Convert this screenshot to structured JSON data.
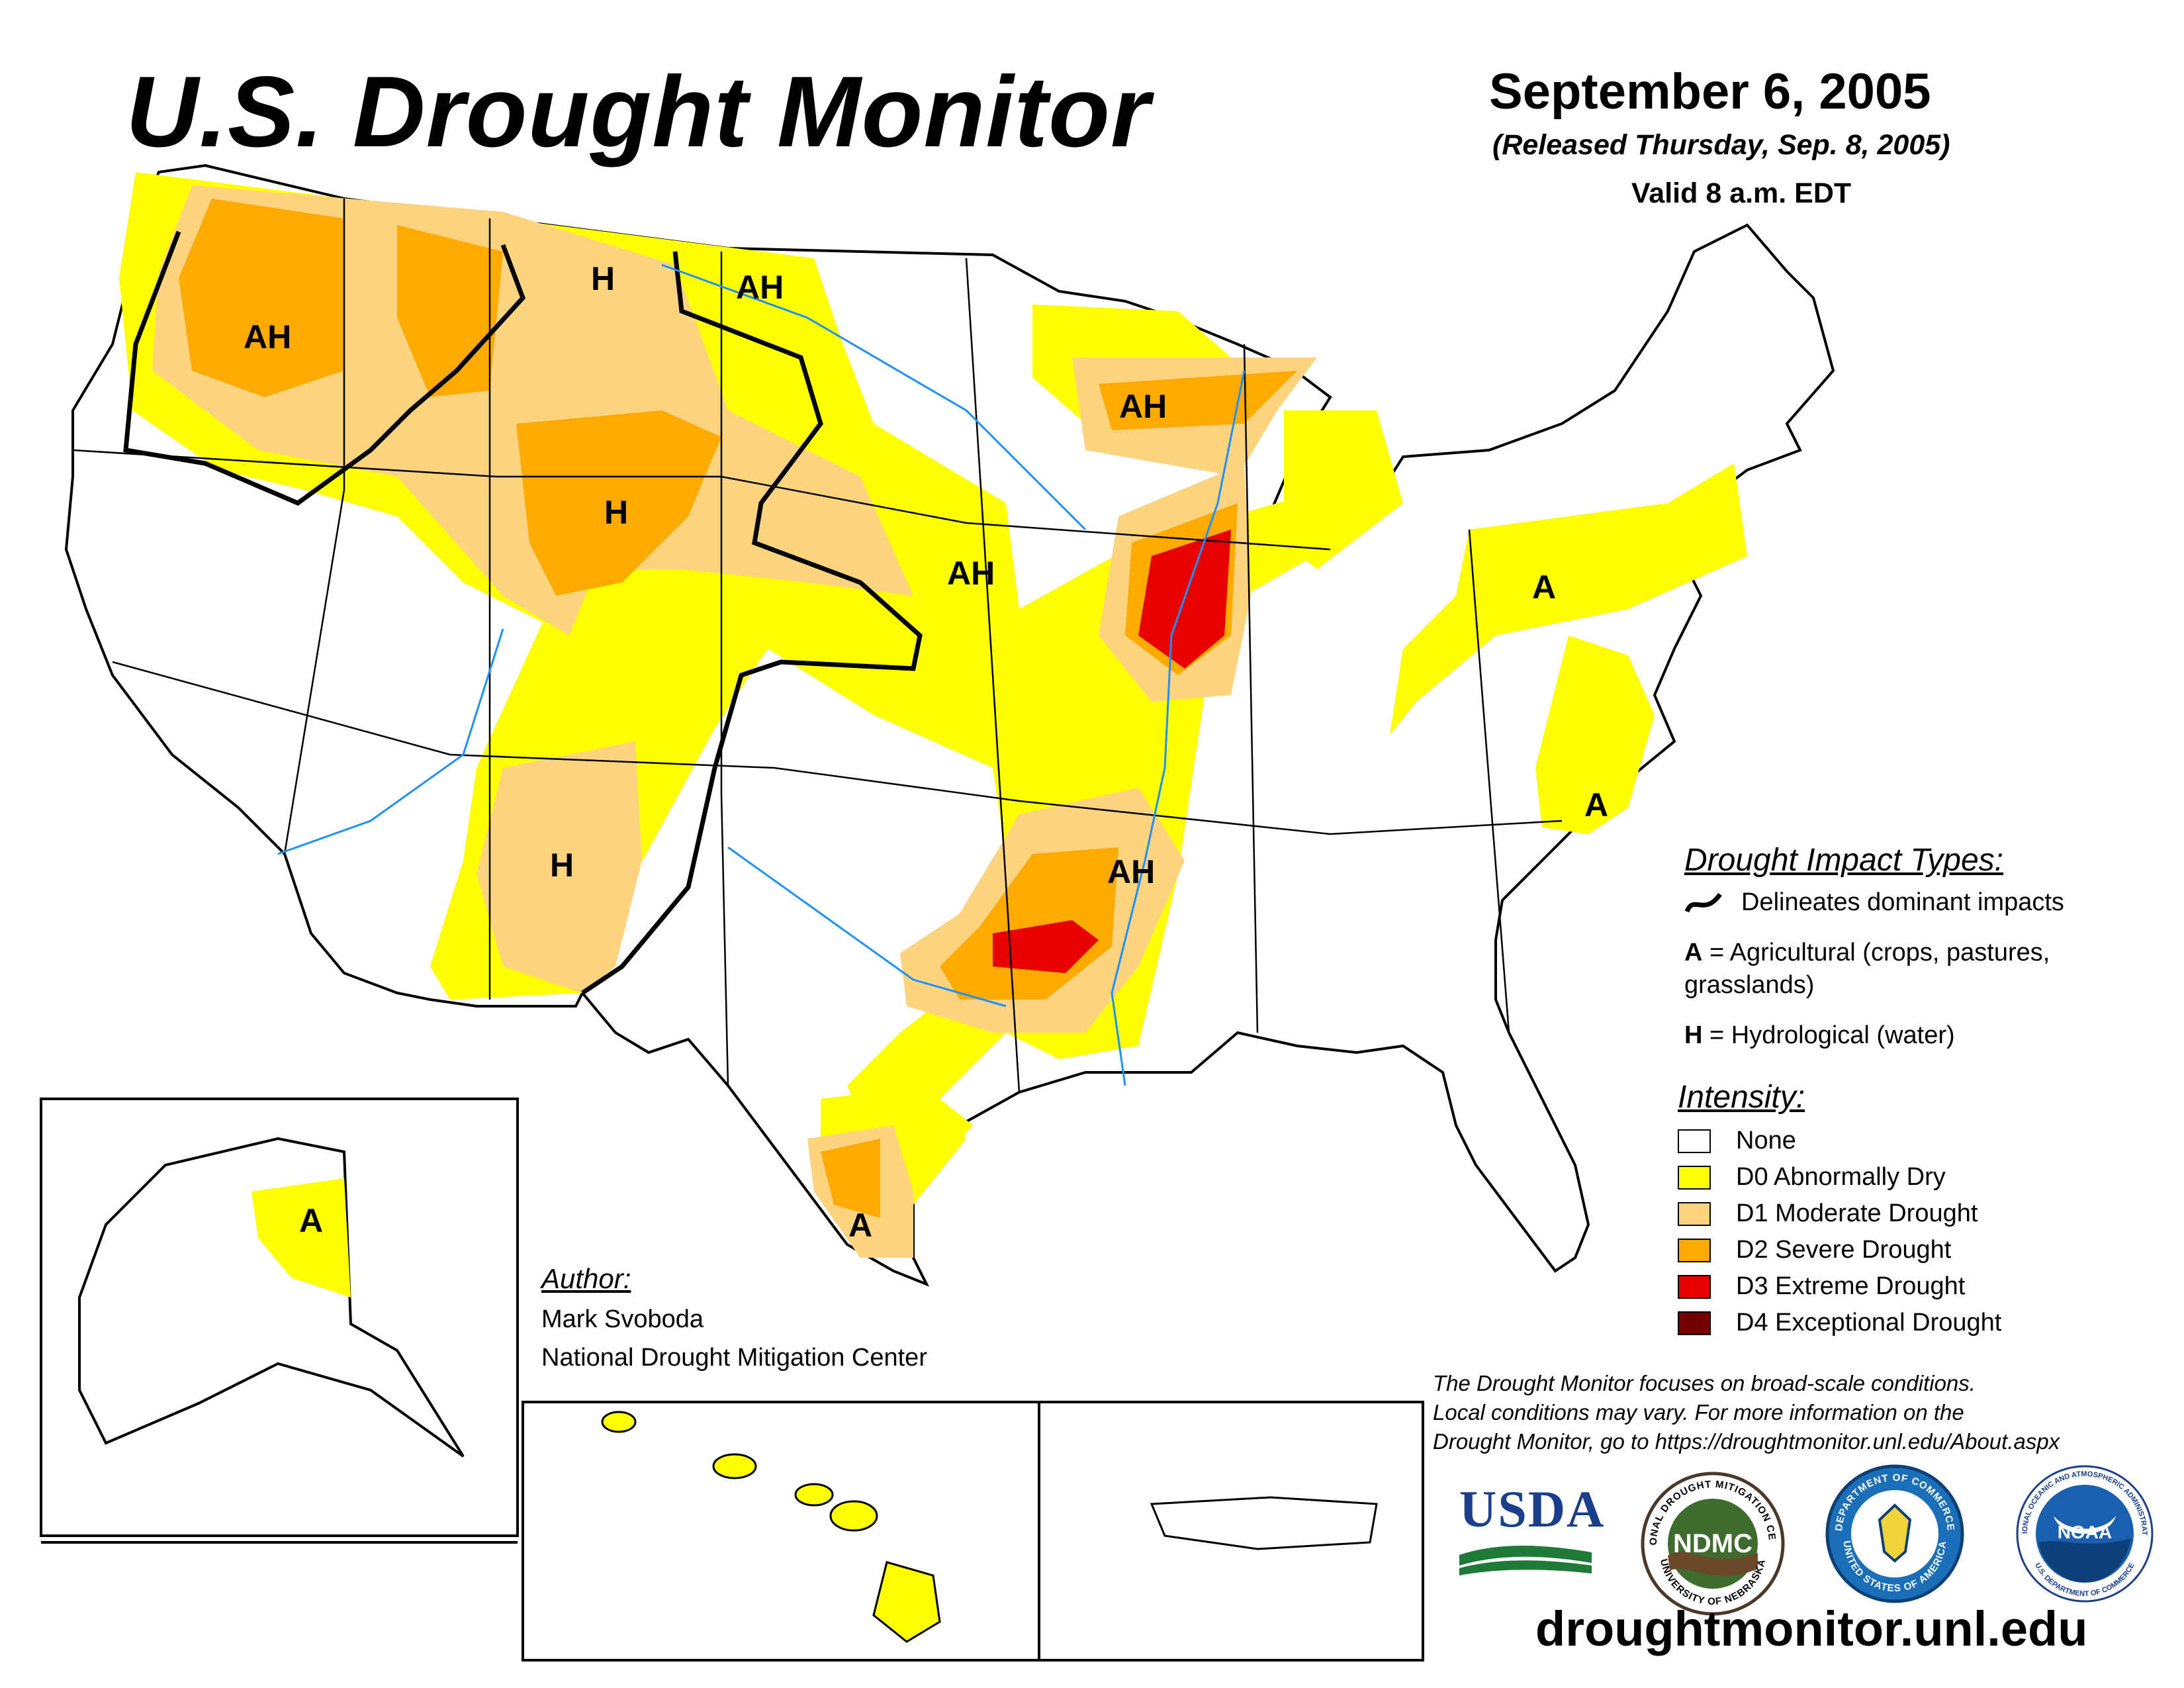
{
  "header": {
    "title": "U.S. Drought Monitor",
    "date": "September 6, 2005",
    "released": "(Released Thursday, Sep. 8, 2005)",
    "valid": "Valid 8 a.m. EDT"
  },
  "colors": {
    "none": "#ffffff",
    "d0": "#ffff00",
    "d1": "#fcd37f",
    "d2": "#ffaa00",
    "d3": "#e60000",
    "d4": "#730000",
    "water": "#1e90ff",
    "boundary": "#000000"
  },
  "impact_legend": {
    "heading": "Drought Impact Types:",
    "delineates": "Delineates dominant impacts",
    "a_key": "A",
    "a_text": "= Agricultural (crops, pastures,",
    "a_text2": "grasslands)",
    "h_key": "H",
    "h_text": "= Hydrological (water)"
  },
  "intensity_legend": {
    "heading": "Intensity:",
    "items": [
      {
        "label": "None",
        "color": "#ffffff"
      },
      {
        "label": "D0 Abnormally Dry",
        "color": "#ffff00"
      },
      {
        "label": "D1 Moderate Drought",
        "color": "#fcd37f"
      },
      {
        "label": "D2 Severe Drought",
        "color": "#ffaa00"
      },
      {
        "label": "D3 Extreme Drought",
        "color": "#e60000"
      },
      {
        "label": "D4 Exceptional Drought",
        "color": "#730000"
      }
    ]
  },
  "map_labels": {
    "pnw": "AH",
    "mt": "H",
    "nd": "AH",
    "wy": "H",
    "nm": "H",
    "ia": "AH",
    "wi": "AH",
    "ar": "AH",
    "pa": "A",
    "nc": "A",
    "tx": "A",
    "ak": "A"
  },
  "author": {
    "heading": "Author:",
    "name": "Mark Svoboda",
    "org": "National Drought Mitigation Center"
  },
  "disclaimer": {
    "line1": "The Drought Monitor focuses on broad-scale conditions.",
    "line2": "Local conditions may vary. For more information on the",
    "line3": "Drought Monitor, go to https://droughtmonitor.unl.edu/About.aspx"
  },
  "logos": {
    "usda": "USDA",
    "ndmc": "NDMC",
    "ndmc_ring_top": "NATIONAL DROUGHT MITIGATION CENTER",
    "ndmc_ring_bottom": "UNIVERSITY OF NEBRASKA",
    "commerce_ring_top": "DEPARTMENT OF COMMERCE",
    "commerce_ring_bottom": "UNITED STATES OF AMERICA",
    "noaa": "NOAA",
    "noaa_ring_top": "NATIONAL OCEANIC AND ATMOSPHERIC ADMINISTRATION",
    "noaa_ring_bottom": "U.S. DEPARTMENT OF COMMERCE"
  },
  "footer": {
    "website": "droughtmonitor.unl.edu"
  }
}
